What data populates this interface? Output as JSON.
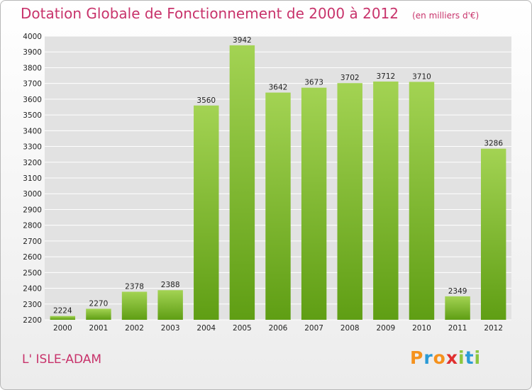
{
  "header": {
    "title": "Dotation Globale de Fonctionnement de 2000 à 2012",
    "subtitle": "(en milliers d'€)"
  },
  "footer": {
    "commune": "L' ISLE-ADAM",
    "logo_letters": [
      "P",
      "r",
      "o",
      "x",
      "i",
      "t",
      "i"
    ],
    "logo_colors": [
      "#f5921e",
      "#2a9ad6",
      "#f5921e",
      "#e0302f",
      "#8cc63f",
      "#2a9ad6",
      "#8cc63f"
    ]
  },
  "chart_data": {
    "type": "bar",
    "title": "Dotation Globale de Fonctionnement de 2000 à 2012",
    "subtitle": "(en milliers d'€)",
    "categories": [
      "2000",
      "2001",
      "2002",
      "2003",
      "2004",
      "2005",
      "2006",
      "2007",
      "2008",
      "2009",
      "2010",
      "2011",
      "2012"
    ],
    "values": [
      2224,
      2270,
      2378,
      2388,
      3560,
      3942,
      3642,
      3673,
      3702,
      3712,
      3710,
      2349,
      3286
    ],
    "data_labels": [
      "2224",
      "2270",
      "2378",
      "2388",
      "3560",
      "3942",
      "3642",
      "3673",
      "3702",
      "3712",
      "3710",
      "2349",
      "3286"
    ],
    "ylim": [
      2200,
      4000
    ],
    "yticks": [
      2200,
      2300,
      2400,
      2500,
      2600,
      2700,
      2800,
      2900,
      3000,
      3100,
      3200,
      3300,
      3400,
      3500,
      3600,
      3700,
      3800,
      3900,
      4000
    ],
    "grid": true,
    "bar_color_top": "#a3d353",
    "bar_color_bottom": "#5f9e14",
    "grid_color": "#ffffff",
    "plot_background": "#e2e2e2"
  }
}
